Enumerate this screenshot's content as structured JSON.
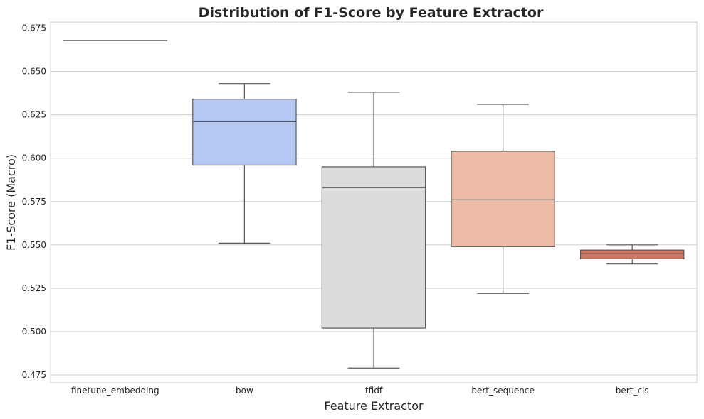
{
  "chart_data": {
    "type": "box",
    "title": "Distribution of F1-Score by Feature Extractor",
    "xlabel": "Feature Extractor",
    "ylabel": "F1-Score (Macro)",
    "ylim": [
      0.4705,
      0.6785
    ],
    "yticks": [
      "0.475",
      "0.500",
      "0.525",
      "0.550",
      "0.575",
      "0.600",
      "0.625",
      "0.650",
      "0.675"
    ],
    "grid": true,
    "categories": [
      "finetune_embedding",
      "bow",
      "tfidf",
      "bert_sequence",
      "bert_cls"
    ],
    "boxes": [
      {
        "category": "finetune_embedding",
        "whisker_low": 0.668,
        "q1": 0.668,
        "median": 0.668,
        "q3": 0.668,
        "whisker_high": 0.668,
        "color": "#3b4cc0"
      },
      {
        "category": "bow",
        "whisker_low": 0.551,
        "q1": 0.596,
        "median": 0.621,
        "q3": 0.634,
        "whisker_high": 0.643,
        "color": "#b5c9f4"
      },
      {
        "category": "tfidf",
        "whisker_low": 0.479,
        "q1": 0.502,
        "median": 0.583,
        "q3": 0.595,
        "whisker_high": 0.638,
        "color": "#dcdcdc"
      },
      {
        "category": "bert_sequence",
        "whisker_low": 0.522,
        "q1": 0.549,
        "median": 0.576,
        "q3": 0.604,
        "whisker_high": 0.631,
        "color": "#ecbca6"
      },
      {
        "category": "bert_cls",
        "whisker_low": 0.539,
        "q1": 0.542,
        "median": 0.545,
        "q3": 0.547,
        "whisker_high": 0.55,
        "color": "#d4735e"
      }
    ]
  }
}
